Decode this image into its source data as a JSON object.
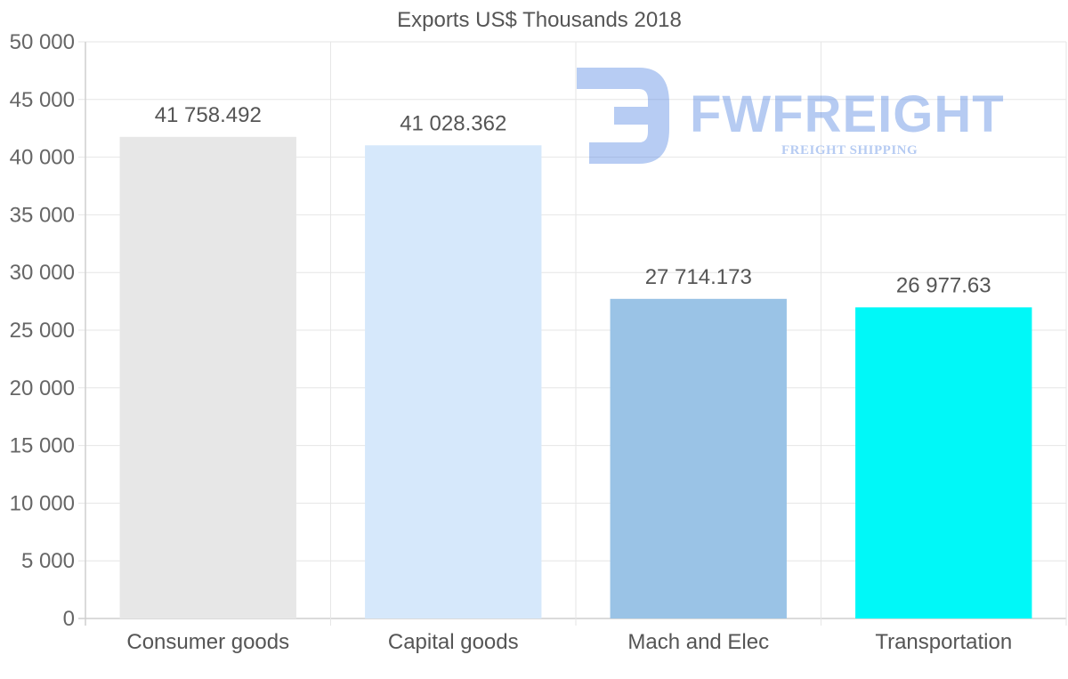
{
  "chart_data": {
    "type": "bar",
    "title": "Exports US$ Thousands 2018",
    "categories": [
      "Consumer goods",
      "Capital goods",
      "Mach and Elec",
      "Transportation"
    ],
    "values": [
      41758.492,
      41028.362,
      27714.173,
      26977.63
    ],
    "value_labels": [
      "41 758.492",
      "41 028.362",
      "27 714.173",
      "26 977.63"
    ],
    "colors": [
      "#e7e7e7",
      "#d6e8fb",
      "#9ac3e6",
      "#00f8f8"
    ],
    "ylim": [
      0,
      50000
    ],
    "y_ticks": [
      0,
      5000,
      10000,
      15000,
      20000,
      25000,
      30000,
      35000,
      40000,
      45000,
      50000
    ],
    "y_tick_labels": [
      "0",
      "5 000",
      "10 000",
      "15 000",
      "20 000",
      "25 000",
      "30 000",
      "35 000",
      "40 000",
      "45 000",
      "50 000"
    ],
    "xlabel": "",
    "ylabel": "",
    "grid": true
  },
  "watermark": {
    "brand": "FWFREIGHT",
    "tagline": "FREIGHT SHIPPING"
  }
}
